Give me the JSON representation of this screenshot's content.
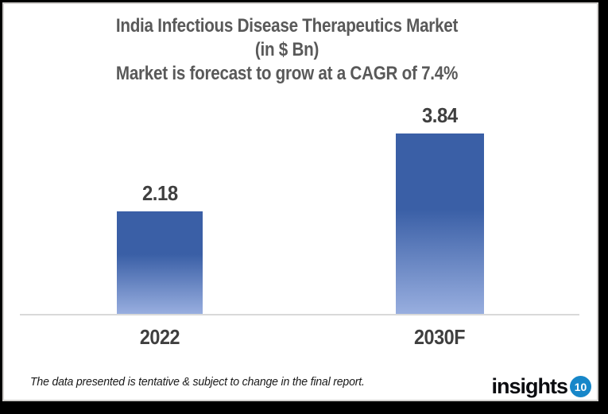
{
  "title": {
    "line1": "India Infectious Disease Therapeutics Market",
    "line2": "(in $ Bn)",
    "line3": "Market is forecast to grow at a CAGR of 7.4%"
  },
  "chart_data": {
    "type": "bar",
    "title": "India Infectious Disease Therapeutics Market (in $ Bn)",
    "subtitle": "Market is forecast to grow at a CAGR of 7.4%",
    "cagr": "7.4%",
    "unit": "$ Bn",
    "categories": [
      "2022",
      "2030F"
    ],
    "values": [
      2.18,
      3.84
    ],
    "value_labels": [
      "2.18",
      "3.84"
    ],
    "ylim": [
      0,
      4.2
    ],
    "grid": false,
    "legend": "none",
    "bar_color_top": "#3A5FA6",
    "bar_color_bottom": "#98AEDF"
  },
  "footnote": "The data presented is tentative & subject to change in the final report.",
  "logo": {
    "text": "insights",
    "badge": "10",
    "badge_color": "#1787C9"
  },
  "colors": {
    "title_text": "#595959",
    "label_text": "#3F3F3F",
    "axis_line": "#D9D9D9",
    "chart_border": "#D2D0CE",
    "frame": "#000000"
  }
}
